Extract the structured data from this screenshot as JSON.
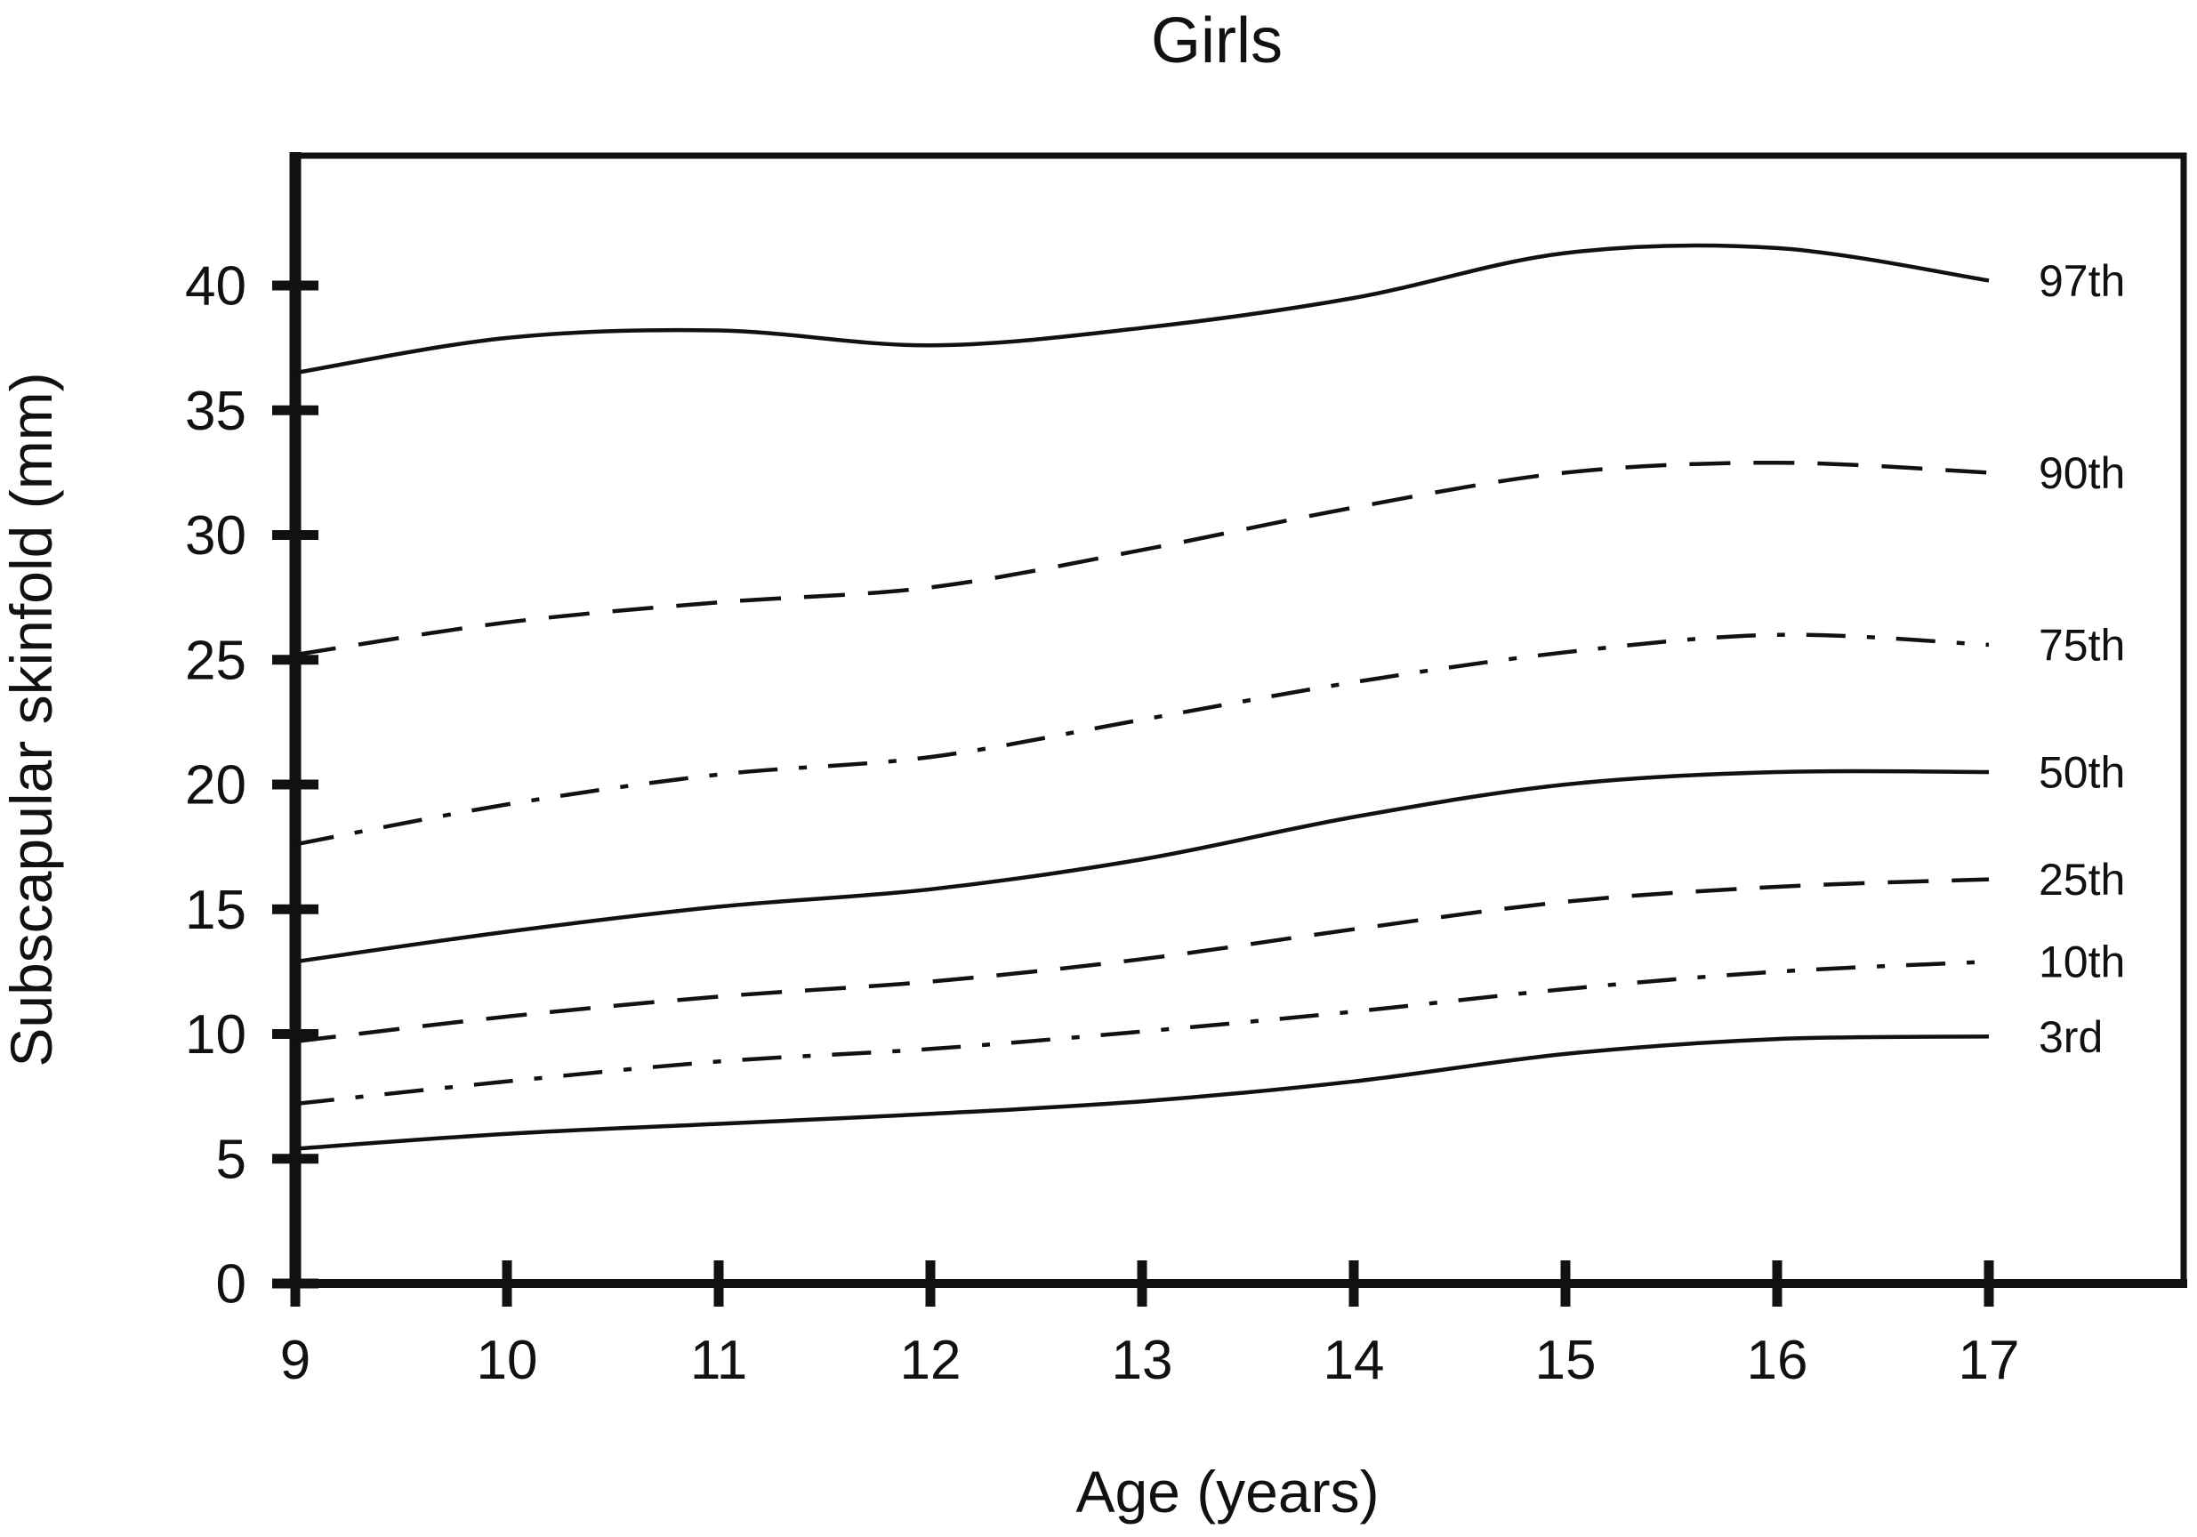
{
  "title": "Girls",
  "colors": {
    "line": "#111111",
    "background": "#ffffff"
  },
  "chart_data": {
    "type": "line",
    "title": "Girls",
    "xlabel": "Age (years)",
    "ylabel": "Subscapular skinfold (mm)",
    "x": [
      9,
      10,
      11,
      12,
      13,
      14,
      15,
      16,
      17
    ],
    "x_ticks": [
      9,
      10,
      11,
      12,
      13,
      14,
      15,
      16,
      17
    ],
    "y_ticks": [
      0,
      5,
      10,
      15,
      20,
      25,
      30,
      35,
      40
    ],
    "xlim": [
      9,
      17.9
    ],
    "ylim": [
      0,
      45.2
    ],
    "grid": false,
    "legend_position": "right-of-curves",
    "series": [
      {
        "name": "97th",
        "style": "solid",
        "values": [
          36.5,
          37.9,
          38.2,
          37.6,
          38.3,
          39.5,
          41.3,
          41.5,
          40.2
        ]
      },
      {
        "name": "90th",
        "style": "dashed",
        "values": [
          25.2,
          26.5,
          27.3,
          27.9,
          29.4,
          31.1,
          32.5,
          32.9,
          32.5
        ]
      },
      {
        "name": "75th",
        "style": "dash-dot",
        "values": [
          17.6,
          19.2,
          20.4,
          21.1,
          22.6,
          24.1,
          25.3,
          26.0,
          25.6
        ]
      },
      {
        "name": "50th",
        "style": "solid",
        "values": [
          12.9,
          14.1,
          15.1,
          15.8,
          17.0,
          18.7,
          20.0,
          20.5,
          20.5
        ]
      },
      {
        "name": "25th",
        "style": "dashed",
        "values": [
          9.7,
          10.7,
          11.5,
          12.1,
          13.0,
          14.2,
          15.3,
          15.9,
          16.2
        ]
      },
      {
        "name": "10th",
        "style": "dash-dot",
        "values": [
          7.2,
          8.1,
          8.9,
          9.4,
          10.1,
          10.9,
          11.8,
          12.5,
          12.9
        ]
      },
      {
        "name": "3rd",
        "style": "solid",
        "values": [
          5.4,
          6.0,
          6.4,
          6.8,
          7.3,
          8.1,
          9.2,
          9.8,
          9.9
        ]
      }
    ]
  }
}
